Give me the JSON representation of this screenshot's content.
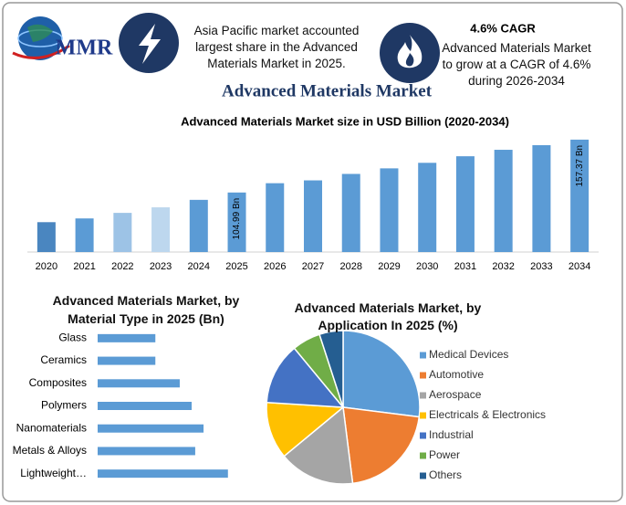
{
  "header": {
    "logo_text": "MMR",
    "highlight_1": "Asia Pacific market accounted largest share in the Advanced Materials Market in 2025.",
    "highlight_2_title": "4.6% CAGR",
    "highlight_2": "Advanced Materials Market to grow at a CAGR of 4.6% during 2026-2034",
    "title": "Advanced Materials Market"
  },
  "chart_data": [
    {
      "type": "bar",
      "orientation": "vertical",
      "title": "Advanced Materials Market size in USD Billion (2020-2034)",
      "categories": [
        "2020",
        "2021",
        "2022",
        "2023",
        "2024",
        "2025",
        "2026",
        "2027",
        "2028",
        "2029",
        "2030",
        "2031",
        "2032",
        "2033",
        "2034"
      ],
      "values": [
        75.6,
        79.3,
        84.8,
        90.3,
        97.7,
        104.99,
        114.2,
        117,
        123.4,
        128.9,
        134.4,
        140.9,
        147.3,
        151.9,
        157.37
      ],
      "value_labels": [
        null,
        null,
        null,
        null,
        null,
        "104.99 Bn",
        null,
        null,
        null,
        null,
        null,
        null,
        null,
        null,
        "157.37 Bn"
      ],
      "colors": [
        "#4a86c0",
        "#5b9bd5",
        "#9dc3e6",
        "#bdd7ee",
        "#5b9bd5",
        "#5b9bd5",
        "#5b9bd5",
        "#5b9bd5",
        "#5b9bd5",
        "#5b9bd5",
        "#5b9bd5",
        "#5b9bd5",
        "#5b9bd5",
        "#5b9bd5",
        "#5b9bd5"
      ],
      "ylim": [
        46,
        160
      ]
    },
    {
      "type": "bar",
      "orientation": "horizontal",
      "title": "Advanced Materials Market, by Material Type in 2025 (Bn)",
      "categories": [
        "Glass",
        "Ceramics",
        "Composites",
        "Polymers",
        "Nanomaterials",
        "Metals & Alloys",
        "Lightweight…"
      ],
      "values": [
        9.7,
        9.7,
        13.8,
        15.8,
        17.8,
        16.4,
        21.9
      ],
      "color": "#5b9bd5",
      "xlim": [
        0,
        25
      ]
    },
    {
      "type": "pie",
      "title": "Advanced Materials Market, by Application In 2025 (%)",
      "categories": [
        "Medical Devices",
        "Automotive",
        "Aerospace",
        "Electricals & Electronics",
        "Industrial",
        "Power",
        "Others"
      ],
      "values": [
        27,
        21,
        16,
        12,
        13,
        6,
        5
      ],
      "colors": [
        "#5b9bd5",
        "#ed7d31",
        "#a5a5a5",
        "#ffc000",
        "#4472c4",
        "#70ad47",
        "#255e91"
      ],
      "legend": "right"
    }
  ]
}
